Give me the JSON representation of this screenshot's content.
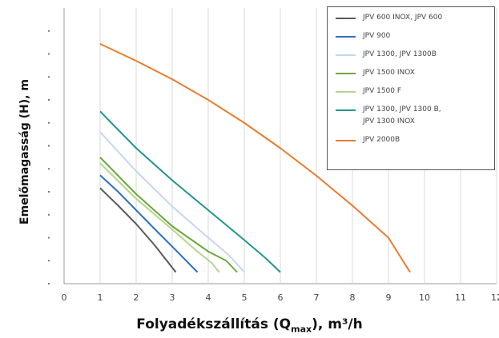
{
  "chart_data": {
    "type": "line",
    "xlabel": "Folyadékszállítás",
    "xlabel_sub": "max",
    "xlabel_prefix": "(Q",
    "xlabel_suffix": "), m³/h",
    "ylabel": "Emelőmagasság (H), m",
    "xlim": [
      0,
      12
    ],
    "x_ticks": [
      "0",
      "1",
      "2",
      "3",
      "4",
      "5",
      "6",
      "7",
      "8",
      "9",
      "10",
      "11",
      "12"
    ],
    "grid": "vertical",
    "legend_position": "top-right",
    "series": [
      {
        "name": "JPV 600 INOX, JPV 600",
        "color": "#5a5a5a",
        "points": [
          [
            1,
            20.8
          ],
          [
            1.5,
            17.0
          ],
          [
            2,
            13.0
          ],
          [
            2.5,
            8.5
          ],
          [
            3.1,
            2.5
          ]
        ]
      },
      {
        "name": "JPV 900",
        "color": "#2f6fbe",
        "points": [
          [
            1,
            23.6
          ],
          [
            1.5,
            20.0
          ],
          [
            2,
            16.0
          ],
          [
            2.5,
            12.0
          ],
          [
            3.1,
            7.3
          ],
          [
            3.7,
            2.5
          ]
        ]
      },
      {
        "name": "JPV 1300, JPV 1300B",
        "color": "#c5d7ee",
        "points": [
          [
            1,
            33.0
          ],
          [
            2,
            24.5
          ],
          [
            3,
            16.8
          ],
          [
            4,
            10.0
          ],
          [
            4.6,
            6.0
          ],
          [
            5.0,
            2.5
          ]
        ]
      },
      {
        "name": "JPV 1500 INOX",
        "color": "#6aa83a",
        "points": [
          [
            1,
            27.5
          ],
          [
            2,
            19.5
          ],
          [
            3,
            12.5
          ],
          [
            4,
            7.0
          ],
          [
            4.5,
            5.0
          ],
          [
            4.8,
            2.5
          ]
        ]
      },
      {
        "name": "JPV 1500 F",
        "color": "#b6d48e",
        "points": [
          [
            1,
            26.2
          ],
          [
            2,
            18.5
          ],
          [
            3,
            11.8
          ],
          [
            3.7,
            7.0
          ],
          [
            4.1,
            4.5
          ],
          [
            4.3,
            2.5
          ]
        ]
      },
      {
        "name": "JPV 1300, JPV 1300 B,\nJPV 1300 INOX",
        "color": "#21968a",
        "points": [
          [
            1,
            37.5
          ],
          [
            2,
            29.5
          ],
          [
            3,
            22.5
          ],
          [
            4,
            16.0
          ],
          [
            5,
            9.5
          ],
          [
            5.6,
            5.5
          ],
          [
            6.0,
            2.5
          ]
        ]
      },
      {
        "name": "JPV 2000B",
        "color": "#ea7c2c",
        "points": [
          [
            1,
            52.2
          ],
          [
            2,
            48.5
          ],
          [
            3,
            44.5
          ],
          [
            4,
            40.0
          ],
          [
            5,
            35.0
          ],
          [
            6,
            29.5
          ],
          [
            7,
            23.5
          ],
          [
            8,
            17.0
          ],
          [
            9,
            10.0
          ],
          [
            9.6,
            2.5
          ]
        ]
      }
    ]
  }
}
